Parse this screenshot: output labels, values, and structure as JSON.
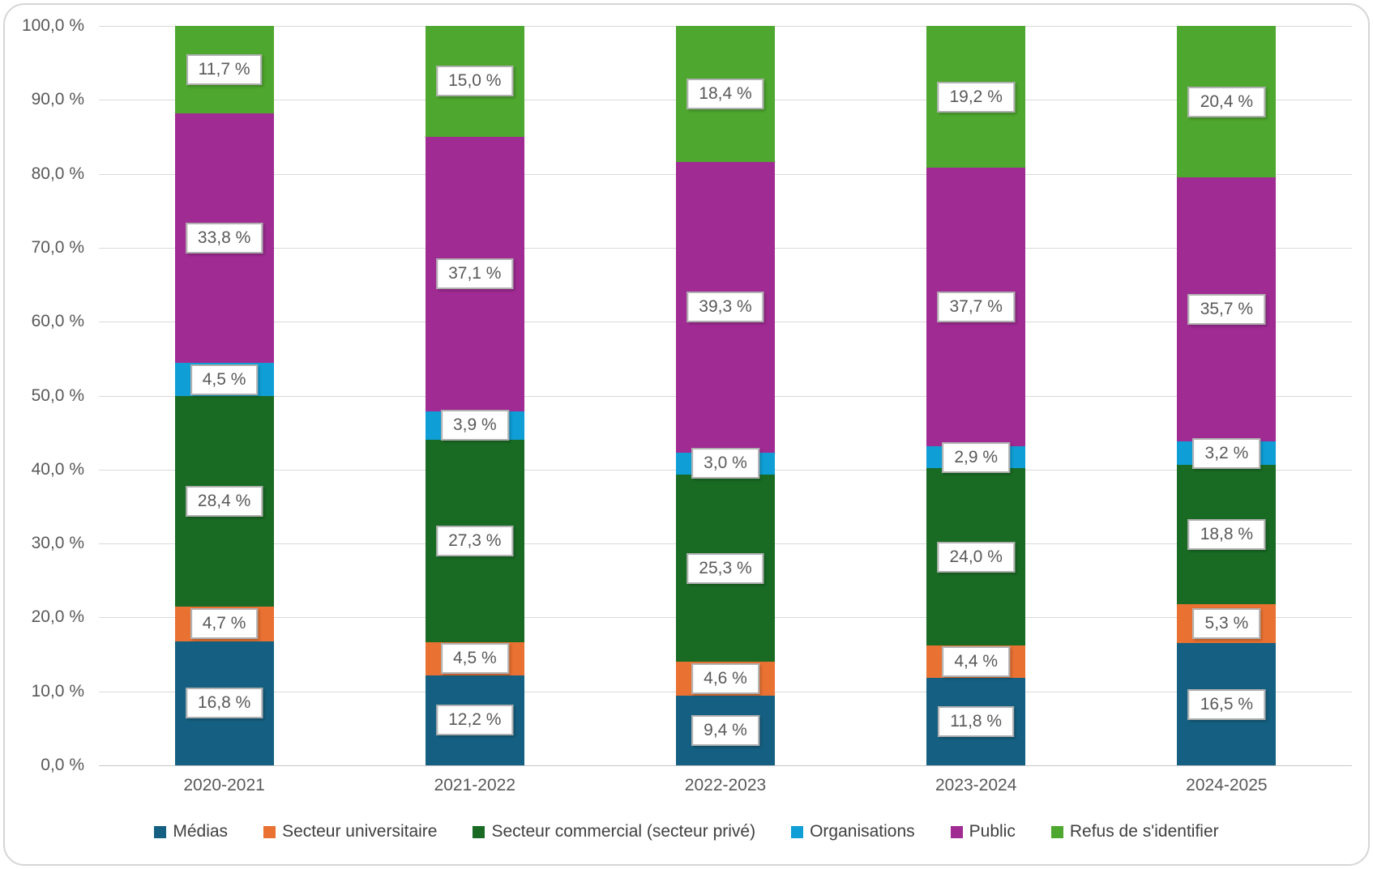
{
  "chart_data": {
    "type": "bar",
    "stacked": true,
    "percent_stacked": true,
    "title": "",
    "xlabel": "",
    "ylabel": "",
    "grid": true,
    "legend_position": "bottom",
    "categories": [
      "2020-2021",
      "2021-2022",
      "2022-2023",
      "2023-2024",
      "2024-2025"
    ],
    "series": [
      {
        "name": "Médias",
        "color": "#156082",
        "values": [
          16.8,
          12.2,
          9.4,
          11.8,
          16.5
        ],
        "labels": [
          "16,8 %",
          "12,2 %",
          "9,4 %",
          "11,8 %",
          "16,5 %"
        ]
      },
      {
        "name": "Secteur universitaire",
        "color": "#E97132",
        "values": [
          4.7,
          4.5,
          4.6,
          4.4,
          5.3
        ],
        "labels": [
          "4,7 %",
          "4,5 %",
          "4,6 %",
          "4,4 %",
          "5,3 %"
        ]
      },
      {
        "name": "Secteur commercial (secteur privé)",
        "color": "#196B24",
        "values": [
          28.4,
          27.3,
          25.3,
          24.0,
          18.8
        ],
        "labels": [
          "28,4 %",
          "27,3 %",
          "25,3 %",
          "24,0 %",
          "18,8 %"
        ]
      },
      {
        "name": "Organisations",
        "color": "#0F9ED5",
        "values": [
          4.5,
          3.9,
          3.0,
          2.9,
          3.2
        ],
        "labels": [
          "4,5 %",
          "3,9 %",
          "3,0 %",
          "2,9 %",
          "3,2 %"
        ]
      },
      {
        "name": "Public",
        "color": "#A02B93",
        "values": [
          33.8,
          37.1,
          39.3,
          37.7,
          35.7
        ],
        "labels": [
          "33,8 %",
          "37,1 %",
          "39,3 %",
          "37,7 %",
          "35,7 %"
        ]
      },
      {
        "name": "Refus de s'identifier",
        "color": "#4EA72E",
        "values": [
          11.7,
          15.0,
          18.4,
          19.2,
          20.4
        ],
        "labels": [
          "11,7 %",
          "15,0 %",
          "18,4 %",
          "19,2 %",
          "20,4 %"
        ]
      }
    ],
    "y_axis": {
      "min": 0,
      "max": 100,
      "step": 10,
      "tick_labels": [
        "0,0 %",
        "10,0 %",
        "20,0 %",
        "30,0 %",
        "40,0 %",
        "50,0 %",
        "60,0 %",
        "70,0 %",
        "80,0 %",
        "90,0 %",
        "100,0 %"
      ]
    }
  }
}
